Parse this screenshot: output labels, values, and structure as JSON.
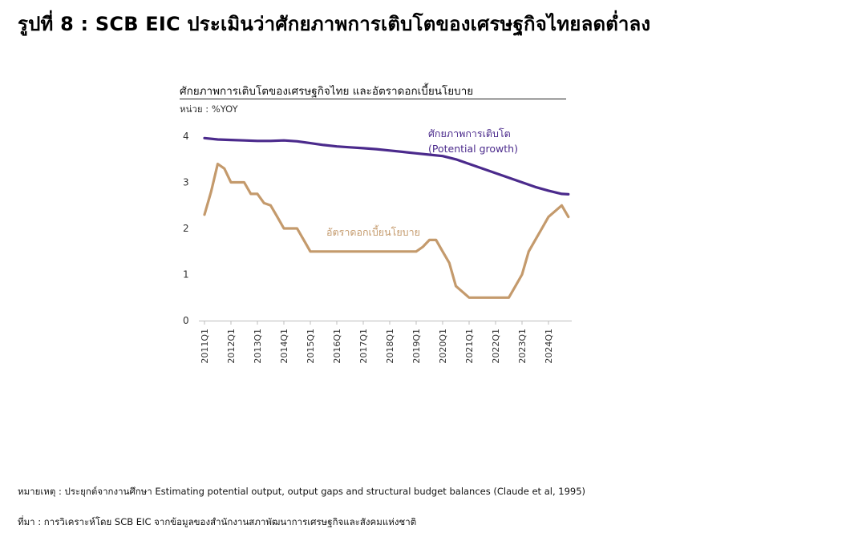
{
  "figure_title": "รูปที่ 8 : SCB EIC ประเมินว่าศักยภาพการเติบโตของเศรษฐกิจไทยลดต่ำลง",
  "chart_data": {
    "type": "line",
    "title": "ศักยภาพการเติบโตของเศรษฐกิจไทย และอัตราดอกเบี้ยนโยบาย",
    "unit": "หน่วย : %YOY",
    "ylim": [
      0,
      4
    ],
    "yticks": [
      0,
      1,
      2,
      3,
      4
    ],
    "x_tick_labels": [
      "2011Q1",
      "2012Q1",
      "2013Q1",
      "2014Q1",
      "2015Q1",
      "2016Q1",
      "2017Q1",
      "2018Q1",
      "2019Q1",
      "2020Q1",
      "2021Q1",
      "2022Q1",
      "2023Q1",
      "2024Q1"
    ],
    "grid": false,
    "series": [
      {
        "name": "ศักยภาพการเติบโต (Potential growth)",
        "label_line1": "ศักยภาพการเติบโต",
        "label_line2": "(Potential growth)",
        "color": "#4b2a8c",
        "x": [
          2011.0,
          2011.5,
          2012.0,
          2012.5,
          2013.0,
          2013.5,
          2014.0,
          2014.5,
          2015.0,
          2015.5,
          2016.0,
          2016.5,
          2017.0,
          2017.5,
          2018.0,
          2018.5,
          2019.0,
          2019.5,
          2020.0,
          2020.5,
          2021.0,
          2021.5,
          2022.0,
          2022.5,
          2023.0,
          2023.5,
          2024.0,
          2024.5,
          2024.75
        ],
        "values": [
          3.96,
          3.93,
          3.92,
          3.91,
          3.9,
          3.9,
          3.91,
          3.89,
          3.85,
          3.81,
          3.78,
          3.76,
          3.74,
          3.72,
          3.69,
          3.66,
          3.63,
          3.6,
          3.57,
          3.5,
          3.4,
          3.3,
          3.2,
          3.1,
          3.0,
          2.9,
          2.82,
          2.75,
          2.74
        ]
      },
      {
        "name": "อัตราดอกเบี้ยนโยบาย",
        "label_line1": "อัตราดอกเบี้ยนโยบาย",
        "color": "#c49a6c",
        "x": [
          2011.0,
          2011.25,
          2011.5,
          2011.75,
          2012.0,
          2012.25,
          2012.5,
          2012.75,
          2013.0,
          2013.25,
          2013.5,
          2013.75,
          2014.0,
          2014.25,
          2014.5,
          2014.75,
          2015.0,
          2015.25,
          2015.5,
          2015.75,
          2016.0,
          2016.5,
          2017.0,
          2017.5,
          2018.0,
          2018.5,
          2018.75,
          2019.0,
          2019.25,
          2019.5,
          2019.75,
          2020.0,
          2020.25,
          2020.5,
          2021.0,
          2021.5,
          2022.0,
          2022.25,
          2022.5,
          2022.75,
          2023.0,
          2023.25,
          2023.5,
          2023.75,
          2024.0,
          2024.5,
          2024.75
        ],
        "values": [
          2.3,
          2.8,
          3.4,
          3.3,
          3.0,
          3.0,
          3.0,
          2.75,
          2.75,
          2.55,
          2.5,
          2.25,
          2.0,
          2.0,
          2.0,
          1.75,
          1.5,
          1.5,
          1.5,
          1.5,
          1.5,
          1.5,
          1.5,
          1.5,
          1.5,
          1.5,
          1.5,
          1.5,
          1.6,
          1.75,
          1.75,
          1.5,
          1.25,
          0.75,
          0.5,
          0.5,
          0.5,
          0.5,
          0.5,
          0.75,
          1.0,
          1.5,
          1.75,
          2.0,
          2.25,
          2.5,
          2.25
        ]
      }
    ]
  },
  "notes": {
    "remark": "หมายเหตุ : ประยุกต์จากงานศึกษา Estimating potential output, output gaps and structural budget balances (Claude et al, 1995)",
    "source": "ที่มา : การวิเคราะห์โดย SCB EIC จากข้อมูลของสำนักงานสภาพัฒนาการเศรษฐกิจและสังคมแห่งชาติ"
  }
}
